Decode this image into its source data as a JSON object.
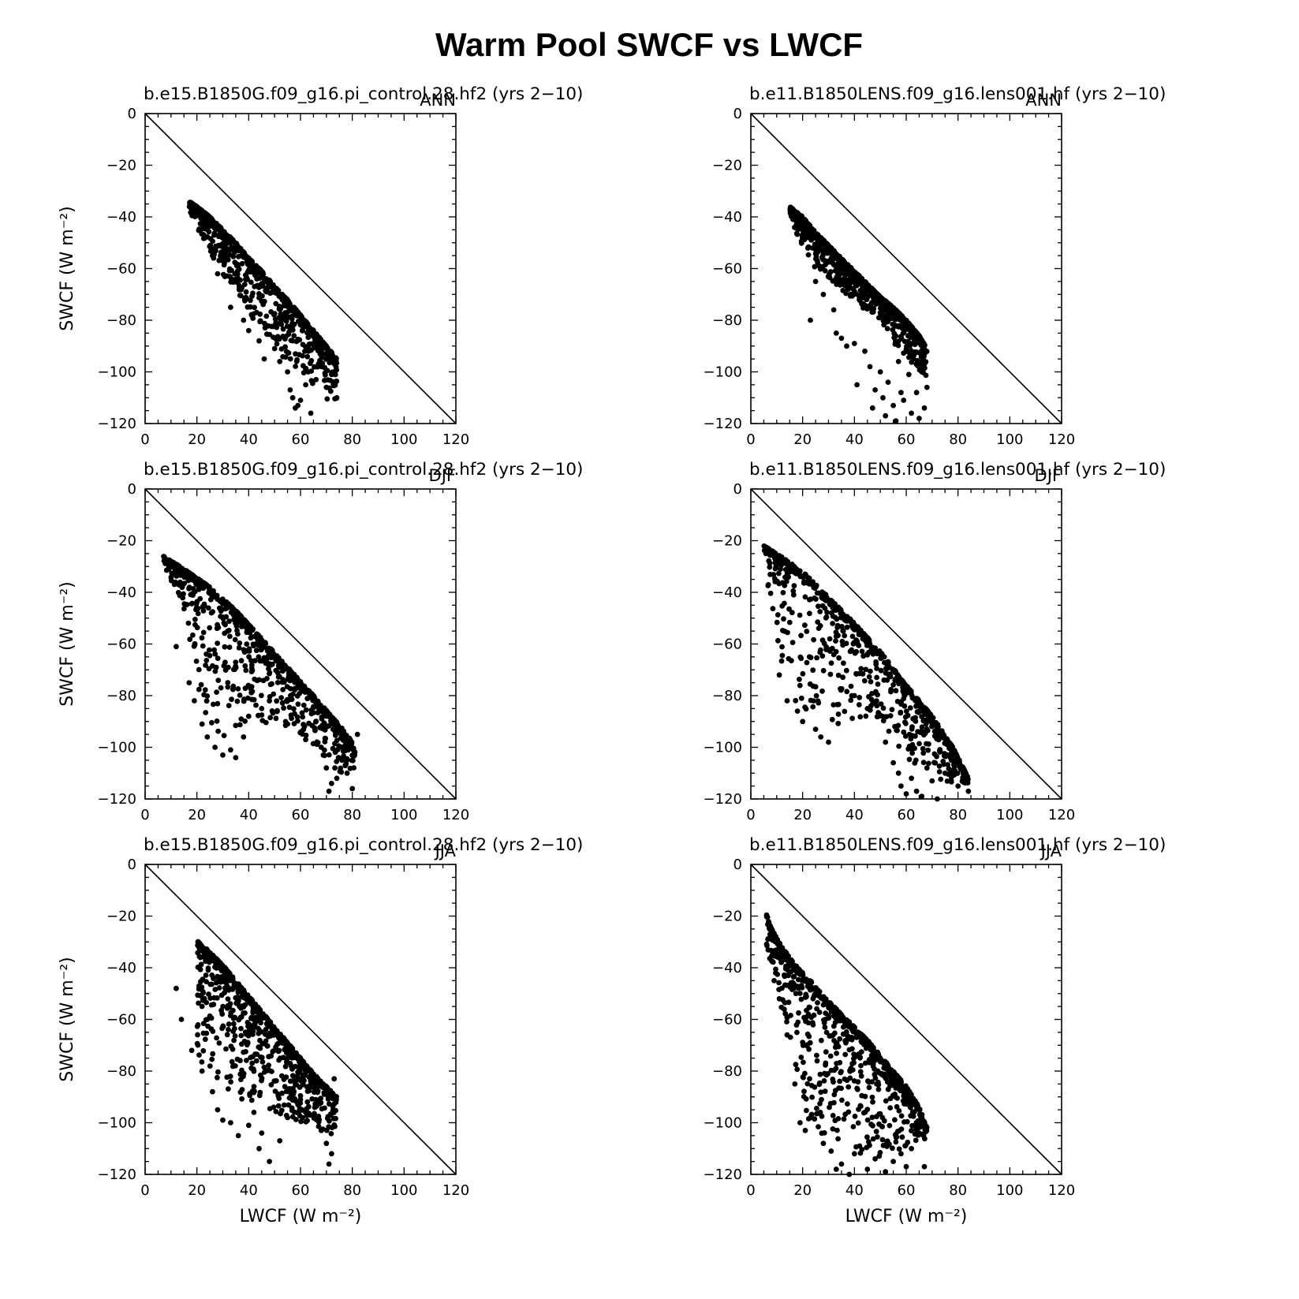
{
  "title": "Warm Pool SWCF vs LWCF",
  "chart_data": [
    {
      "type": "scatter",
      "panel": "left-top",
      "title": "b.e15.B1850G.f09_g16.pi_control.28.hf2 (yrs 2−10)",
      "season": "ANN",
      "xlabel": "",
      "ylabel": "SWCF (W m⁻²)",
      "xlim": [
        0,
        120
      ],
      "ylim": [
        -120,
        0
      ],
      "xticks": [
        "0",
        "20",
        "40",
        "60",
        "80",
        "100",
        "120"
      ],
      "yticks": [
        "0",
        "−20",
        "−40",
        "−60",
        "−80",
        "−100",
        "−120"
      ],
      "reference_line": {
        "from": [
          0,
          0
        ],
        "to": [
          120,
          -120
        ]
      },
      "upper_edge": [
        [
          17,
          -34
        ],
        [
          20,
          -36
        ],
        [
          25,
          -40
        ],
        [
          30,
          -45
        ],
        [
          35,
          -50
        ],
        [
          40,
          -56
        ],
        [
          45,
          -61
        ],
        [
          50,
          -67
        ],
        [
          55,
          -72
        ],
        [
          60,
          -78
        ],
        [
          65,
          -84
        ],
        [
          70,
          -90
        ],
        [
          74,
          -95
        ]
      ],
      "lower_edge": [
        [
          17,
          -37
        ],
        [
          20,
          -45
        ],
        [
          25,
          -54
        ],
        [
          30,
          -62
        ],
        [
          35,
          -69
        ],
        [
          40,
          -77
        ],
        [
          45,
          -84
        ],
        [
          50,
          -90
        ],
        [
          55,
          -97
        ],
        [
          60,
          -103
        ],
        [
          65,
          -108
        ],
        [
          72,
          -112
        ]
      ],
      "outliers": [
        [
          26,
          -55
        ],
        [
          28,
          -62
        ],
        [
          33,
          -75
        ],
        [
          38,
          -80
        ],
        [
          40,
          -84
        ],
        [
          44,
          -88
        ],
        [
          46,
          -95
        ],
        [
          50,
          -91
        ],
        [
          52,
          -96
        ],
        [
          55,
          -100
        ],
        [
          56,
          -107
        ],
        [
          57,
          -110
        ],
        [
          58,
          -114
        ],
        [
          59,
          -113
        ],
        [
          60,
          -111
        ],
        [
          62,
          -105
        ],
        [
          63,
          -100
        ],
        [
          64,
          -116
        ],
        [
          66,
          -103
        ],
        [
          68,
          -98
        ],
        [
          70,
          -106
        ],
        [
          72,
          -101
        ],
        [
          74,
          -110
        ]
      ]
    },
    {
      "type": "scatter",
      "panel": "right-top",
      "title": "b.e11.B1850LENS.f09_g16.lens001.hf (yrs 2−10)",
      "season": "ANN",
      "xlabel": "",
      "ylabel": "",
      "xlim": [
        0,
        120
      ],
      "ylim": [
        -120,
        0
      ],
      "xticks": [
        "0",
        "20",
        "40",
        "60",
        "80",
        "100",
        "120"
      ],
      "yticks": [
        "0",
        "−20",
        "−40",
        "−60",
        "−80",
        "−100",
        "−120"
      ],
      "reference_line": {
        "from": [
          0,
          0
        ],
        "to": [
          120,
          -120
        ]
      },
      "upper_edge": [
        [
          15,
          -36
        ],
        [
          20,
          -40
        ],
        [
          25,
          -46
        ],
        [
          30,
          -51
        ],
        [
          35,
          -56
        ],
        [
          40,
          -61
        ],
        [
          45,
          -66
        ],
        [
          50,
          -71
        ],
        [
          55,
          -75
        ],
        [
          60,
          -80
        ],
        [
          65,
          -86
        ],
        [
          68,
          -91
        ]
      ],
      "lower_edge": [
        [
          15,
          -38
        ],
        [
          18,
          -48
        ],
        [
          22,
          -58
        ],
        [
          28,
          -62
        ],
        [
          35,
          -68
        ],
        [
          42,
          -74
        ],
        [
          50,
          -80
        ],
        [
          55,
          -88
        ],
        [
          60,
          -95
        ],
        [
          65,
          -100
        ],
        [
          68,
          -105
        ]
      ],
      "outliers": [
        [
          23,
          -80
        ],
        [
          25,
          -65
        ],
        [
          28,
          -70
        ],
        [
          32,
          -76
        ],
        [
          33,
          -85
        ],
        [
          35,
          -87
        ],
        [
          37,
          -90
        ],
        [
          40,
          -89
        ],
        [
          41,
          -105
        ],
        [
          44,
          -92
        ],
        [
          46,
          -98
        ],
        [
          47,
          -114
        ],
        [
          48,
          -107
        ],
        [
          50,
          -100
        ],
        [
          51,
          -110
        ],
        [
          52,
          -117
        ],
        [
          53,
          -104
        ],
        [
          55,
          -113
        ],
        [
          56,
          -119
        ],
        [
          57,
          -96
        ],
        [
          58,
          -108
        ],
        [
          59,
          -111
        ],
        [
          61,
          -101
        ],
        [
          62,
          -116
        ],
        [
          63,
          -93
        ],
        [
          64,
          -108
        ],
        [
          65,
          -118
        ],
        [
          66,
          -100
        ],
        [
          67,
          -114
        ],
        [
          68,
          -106
        ]
      ]
    },
    {
      "type": "scatter",
      "panel": "left-middle",
      "title": "b.e15.B1850G.f09_g16.pi_control.28.hf2 (yrs 2−10)",
      "season": "DJF",
      "xlabel": "",
      "ylabel": "SWCF (W m⁻²)",
      "xlim": [
        0,
        120
      ],
      "ylim": [
        -120,
        0
      ],
      "xticks": [
        "0",
        "20",
        "40",
        "60",
        "80",
        "100",
        "120"
      ],
      "yticks": [
        "0",
        "−20",
        "−40",
        "−60",
        "−80",
        "−100",
        "−120"
      ],
      "reference_line": {
        "from": [
          0,
          0
        ],
        "to": [
          120,
          -120
        ]
      },
      "upper_edge": [
        [
          7,
          -26
        ],
        [
          15,
          -31
        ],
        [
          25,
          -38
        ],
        [
          35,
          -47
        ],
        [
          45,
          -58
        ],
        [
          55,
          -69
        ],
        [
          65,
          -80
        ],
        [
          72,
          -88
        ],
        [
          78,
          -95
        ],
        [
          81,
          -100
        ]
      ],
      "lower_edge": [
        [
          7,
          -28
        ],
        [
          12,
          -40
        ],
        [
          16,
          -55
        ],
        [
          18,
          -68
        ],
        [
          20,
          -80
        ],
        [
          25,
          -90
        ],
        [
          30,
          -97
        ],
        [
          40,
          -93
        ],
        [
          50,
          -90
        ],
        [
          60,
          -95
        ],
        [
          68,
          -102
        ],
        [
          74,
          -110
        ]
      ],
      "outliers": [
        [
          12,
          -61
        ],
        [
          17,
          -75
        ],
        [
          19,
          -82
        ],
        [
          22,
          -91
        ],
        [
          24,
          -96
        ],
        [
          27,
          -100
        ],
        [
          30,
          -103
        ],
        [
          33,
          -101
        ],
        [
          35,
          -104
        ],
        [
          38,
          -96
        ],
        [
          40,
          -88
        ],
        [
          45,
          -85
        ],
        [
          55,
          -91
        ],
        [
          62,
          -97
        ],
        [
          68,
          -100
        ],
        [
          70,
          -108
        ],
        [
          71,
          -117
        ],
        [
          72,
          -114
        ],
        [
          74,
          -112
        ],
        [
          76,
          -105
        ],
        [
          78,
          -110
        ],
        [
          80,
          -116
        ],
        [
          82,
          -95
        ]
      ]
    },
    {
      "type": "scatter",
      "panel": "right-middle",
      "title": "b.e11.B1850LENS.f09_g16.lens001.hf (yrs 2−10)",
      "season": "DJF",
      "xlabel": "",
      "ylabel": "",
      "xlim": [
        0,
        120
      ],
      "ylim": [
        -120,
        0
      ],
      "xticks": [
        "0",
        "20",
        "40",
        "60",
        "80",
        "100",
        "120"
      ],
      "yticks": [
        "0",
        "−20",
        "−40",
        "−60",
        "−80",
        "−100",
        "−120"
      ],
      "reference_line": {
        "from": [
          0,
          0
        ],
        "to": [
          120,
          -120
        ]
      },
      "upper_edge": [
        [
          5,
          -22
        ],
        [
          10,
          -25
        ],
        [
          20,
          -32
        ],
        [
          30,
          -42
        ],
        [
          40,
          -52
        ],
        [
          50,
          -63
        ],
        [
          60,
          -76
        ],
        [
          70,
          -88
        ],
        [
          78,
          -100
        ],
        [
          84,
          -112
        ]
      ],
      "lower_edge": [
        [
          5,
          -30
        ],
        [
          8,
          -45
        ],
        [
          10,
          -58
        ],
        [
          12,
          -68
        ],
        [
          15,
          -80
        ],
        [
          20,
          -88
        ],
        [
          30,
          -92
        ],
        [
          45,
          -90
        ],
        [
          55,
          -100
        ],
        [
          65,
          -108
        ],
        [
          75,
          -114
        ]
      ],
      "outliers": [
        [
          11,
          -72
        ],
        [
          14,
          -82
        ],
        [
          18,
          -86
        ],
        [
          20,
          -90
        ],
        [
          25,
          -93
        ],
        [
          27,
          -96
        ],
        [
          30,
          -98
        ],
        [
          40,
          -80
        ],
        [
          45,
          -85
        ],
        [
          52,
          -98
        ],
        [
          55,
          -106
        ],
        [
          57,
          -110
        ],
        [
          58,
          -115
        ],
        [
          60,
          -118
        ],
        [
          62,
          -112
        ],
        [
          64,
          -117
        ],
        [
          66,
          -119
        ],
        [
          68,
          -108
        ],
        [
          70,
          -113
        ],
        [
          72,
          -120
        ],
        [
          75,
          -110
        ],
        [
          78,
          -105
        ],
        [
          80,
          -115
        ],
        [
          82,
          -110
        ],
        [
          84,
          -117
        ]
      ]
    },
    {
      "type": "scatter",
      "panel": "left-bottom",
      "title": "b.e15.B1850G.f09_g16.pi_control.28.hf2 (yrs 2−10)",
      "season": "JJA",
      "xlabel": "LWCF (W m⁻²)",
      "ylabel": "SWCF (W m⁻²)",
      "xlim": [
        0,
        120
      ],
      "ylim": [
        -120,
        0
      ],
      "xticks": [
        "0",
        "20",
        "40",
        "60",
        "80",
        "100",
        "120"
      ],
      "yticks": [
        "0",
        "−20",
        "−40",
        "−60",
        "−80",
        "−100",
        "−120"
      ],
      "reference_line": {
        "from": [
          0,
          0
        ],
        "to": [
          120,
          -120
        ]
      },
      "upper_edge": [
        [
          20,
          -29
        ],
        [
          25,
          -34
        ],
        [
          30,
          -39
        ],
        [
          35,
          -45
        ],
        [
          40,
          -51
        ],
        [
          45,
          -57
        ],
        [
          50,
          -63
        ],
        [
          55,
          -69
        ],
        [
          60,
          -75
        ],
        [
          65,
          -81
        ],
        [
          70,
          -86
        ],
        [
          74,
          -90
        ]
      ],
      "lower_edge": [
        [
          9,
          -42
        ],
        [
          10,
          -55
        ],
        [
          15,
          -68
        ],
        [
          20,
          -75
        ],
        [
          25,
          -82
        ],
        [
          30,
          -88
        ],
        [
          40,
          -93
        ],
        [
          50,
          -97
        ],
        [
          60,
          -100
        ],
        [
          68,
          -103
        ],
        [
          72,
          -105
        ]
      ],
      "outliers": [
        [
          12,
          -48
        ],
        [
          14,
          -60
        ],
        [
          18,
          -72
        ],
        [
          22,
          -80
        ],
        [
          26,
          -88
        ],
        [
          28,
          -95
        ],
        [
          30,
          -99
        ],
        [
          33,
          -100
        ],
        [
          36,
          -105
        ],
        [
          40,
          -101
        ],
        [
          42,
          -96
        ],
        [
          44,
          -110
        ],
        [
          45,
          -104
        ],
        [
          48,
          -115
        ],
        [
          52,
          -107
        ],
        [
          55,
          -98
        ],
        [
          60,
          -95
        ],
        [
          65,
          -97
        ],
        [
          68,
          -103
        ],
        [
          70,
          -108
        ],
        [
          71,
          -116
        ],
        [
          72,
          -112
        ],
        [
          73,
          -83
        ]
      ]
    },
    {
      "type": "scatter",
      "panel": "right-bottom",
      "title": "b.e11.B1850LENS.f09_g16.lens001.hf (yrs 2−10)",
      "season": "JJA",
      "xlabel": "LWCF (W m⁻²)",
      "ylabel": "",
      "xlim": [
        0,
        120
      ],
      "ylim": [
        -120,
        0
      ],
      "xticks": [
        "0",
        "20",
        "40",
        "60",
        "80",
        "100",
        "120"
      ],
      "yticks": [
        "0",
        "−20",
        "−40",
        "−60",
        "−80",
        "−100",
        "−120"
      ],
      "reference_line": {
        "from": [
          0,
          0
        ],
        "to": [
          120,
          -120
        ]
      },
      "upper_edge": [
        [
          6,
          -19
        ],
        [
          8,
          -25
        ],
        [
          12,
          -32
        ],
        [
          18,
          -40
        ],
        [
          25,
          -47
        ],
        [
          30,
          -53
        ],
        [
          35,
          -58
        ],
        [
          40,
          -63
        ],
        [
          45,
          -68
        ],
        [
          50,
          -74
        ],
        [
          55,
          -80
        ],
        [
          60,
          -86
        ],
        [
          65,
          -94
        ],
        [
          68,
          -102
        ]
      ],
      "lower_edge": [
        [
          6,
          -31
        ],
        [
          8,
          -40
        ],
        [
          10,
          -50
        ],
        [
          14,
          -62
        ],
        [
          16,
          -75
        ],
        [
          18,
          -88
        ],
        [
          20,
          -96
        ],
        [
          25,
          -102
        ],
        [
          30,
          -106
        ],
        [
          38,
          -110
        ],
        [
          45,
          -113
        ],
        [
          55,
          -112
        ],
        [
          62,
          -108
        ],
        [
          68,
          -106
        ]
      ],
      "outliers": [
        [
          7,
          -23
        ],
        [
          9,
          -45
        ],
        [
          11,
          -52
        ],
        [
          14,
          -66
        ],
        [
          17,
          -85
        ],
        [
          19,
          -100
        ],
        [
          21,
          -103
        ],
        [
          23,
          -98
        ],
        [
          28,
          -108
        ],
        [
          31,
          -111
        ],
        [
          33,
          -118
        ],
        [
          35,
          -116
        ],
        [
          38,
          -120
        ],
        [
          40,
          -112
        ],
        [
          42,
          -109
        ],
        [
          45,
          -118
        ],
        [
          48,
          -114
        ],
        [
          52,
          -119
        ],
        [
          55,
          -115
        ],
        [
          58,
          -112
        ],
        [
          60,
          -117
        ],
        [
          62,
          -110
        ],
        [
          65,
          -104
        ],
        [
          67,
          -117
        ]
      ]
    }
  ]
}
